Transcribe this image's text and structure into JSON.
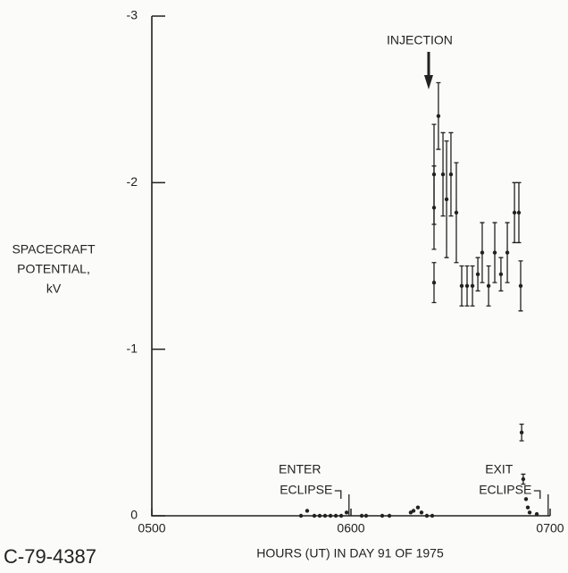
{
  "chart_data": {
    "type": "scatter",
    "y_label": [
      "SPACECRAFT",
      "POTENTIAL,",
      "kV"
    ],
    "x_label": "HOURS (UT) IN DAY 91 OF 1975",
    "figure_id": "C-79-4387",
    "annotations": [
      {
        "text": "INJECTION",
        "x": 6.39
      },
      {
        "text": [
          "ENTER",
          "ECLIPSE"
        ],
        "x": 5.99
      },
      {
        "text": [
          "EXIT",
          "ECLIPSE"
        ],
        "x": 6.99
      }
    ],
    "xlim": [
      5,
      7
    ],
    "xticks": [
      {
        "value": 5,
        "label": "0500"
      },
      {
        "value": 6,
        "label": "0600"
      },
      {
        "value": 7,
        "label": "0700"
      }
    ],
    "ylim": [
      0,
      -3
    ],
    "yticks": [
      0,
      -1,
      -2,
      -3
    ],
    "color": "#222222",
    "x": [
      5.749,
      5.78,
      5.816,
      5.843,
      5.87,
      5.897,
      5.924,
      5.951,
      5.978,
      6.054,
      6.076,
      6.157,
      6.193,
      6.3,
      6.314,
      6.336,
      6.354,
      6.381,
      6.408,
      6.417,
      6.417,
      6.417,
      6.439,
      6.462,
      6.48,
      6.502,
      6.529,
      6.556,
      6.583,
      6.61,
      6.637,
      6.659,
      6.691,
      6.722,
      6.753,
      6.785,
      6.821,
      6.843,
      6.852,
      6.857,
      6.865,
      6.879,
      6.888,
      6.897,
      6.933
    ],
    "values": [
      0,
      -0.03,
      0,
      0,
      0,
      0,
      0,
      0,
      -0.02,
      0,
      0,
      0,
      0,
      -0.02,
      -0.03,
      -0.05,
      -0.02,
      0,
      0,
      -1.4,
      -1.85,
      -2.05,
      -2.4,
      -2.05,
      -1.9,
      -2.05,
      -1.82,
      -1.38,
      -1.38,
      -1.38,
      -1.45,
      -1.58,
      -1.38,
      -1.58,
      -1.45,
      -1.58,
      -1.82,
      -1.82,
      -1.38,
      -0.5,
      -0.22,
      -0.1,
      -0.05,
      -0.02,
      -0.01
    ],
    "errors": [
      0,
      0,
      0,
      0,
      0,
      0,
      0,
      0,
      0,
      0,
      0,
      0,
      0,
      0,
      0,
      0,
      0,
      0,
      0,
      0.12,
      0.25,
      0.3,
      0.2,
      0.25,
      0.35,
      0.25,
      0.3,
      0.12,
      0.12,
      0.12,
      0.1,
      0.18,
      0.12,
      0.18,
      0.1,
      0.18,
      0.18,
      0.18,
      0.15,
      0.05,
      0.03,
      0,
      0,
      0,
      0
    ]
  }
}
